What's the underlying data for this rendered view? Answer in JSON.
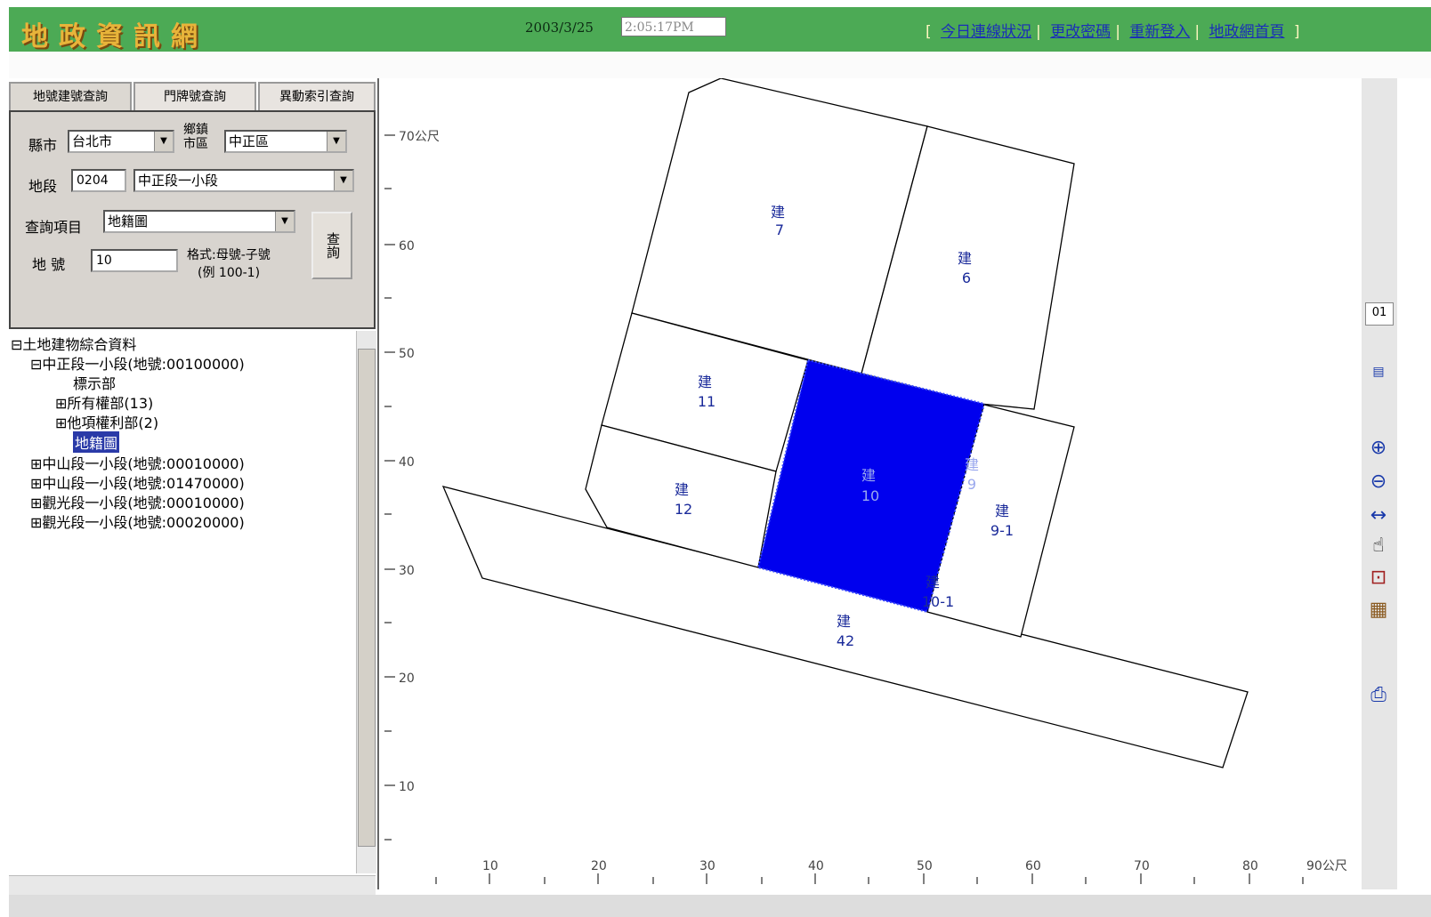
{
  "header": {
    "logo": "地政資訊網",
    "date": "2003/3/25",
    "time": "2:05:17PM",
    "links": [
      "今日連線狀況",
      "更改密碼",
      "重新登入",
      "地政網首頁"
    ]
  },
  "tabs": [
    "地號建號查詢",
    "門牌號查詢",
    "異動索引查詢"
  ],
  "query": {
    "city_label": "縣市",
    "city_value": "台北市",
    "district_label": "鄉鎮市區",
    "district_value": "中正區",
    "section_label": "地段",
    "section_code": "0204",
    "section_value": "中正段一小段",
    "item_label": "查詢項目",
    "item_value": "地籍圖",
    "number_label": "地 號",
    "number_value": "10",
    "format_hint": "格式:母號-子號",
    "format_example": "(例 100-1)",
    "query_button": "查詢"
  },
  "tree": {
    "root": "土地建物綜合資料",
    "items": [
      "中正段一小段(地號:00100000)",
      "標示部",
      "所有權部(13)",
      "他項權利部(2)",
      "地籍圖",
      "中山段一小段(地號:00010000)",
      "中山段一小段(地號:01470000)",
      "觀光段一小段(地號:00010000)",
      "觀光段一小段(地號:00020000)"
    ]
  },
  "map": {
    "y_ticks": [
      "70公尺",
      "60",
      "50",
      "40",
      "30",
      "20",
      "10"
    ],
    "x_ticks": [
      "10",
      "20",
      "30",
      "40",
      "50",
      "60",
      "70",
      "80",
      "90公尺"
    ],
    "parcels": [
      {
        "prefix": "建",
        "num": "7"
      },
      {
        "prefix": "建",
        "num": "6"
      },
      {
        "prefix": "建",
        "num": "11"
      },
      {
        "prefix": "建",
        "num": "12"
      },
      {
        "prefix": "建",
        "num": "10"
      },
      {
        "prefix": "建",
        "num": "9"
      },
      {
        "prefix": "建",
        "num": "9-1"
      },
      {
        "prefix": "建",
        "num": "10-1"
      },
      {
        "prefix": "建",
        "num": "42"
      }
    ],
    "highlight_color": "#0000ee"
  },
  "toolbar": {
    "scale_box": "01",
    "icons": [
      "legend-icon",
      "zoom-in-icon",
      "zoom-out-icon",
      "pan-horizontal-icon",
      "hand-icon",
      "zoom-window-icon",
      "grid-icon",
      "print-icon"
    ]
  }
}
